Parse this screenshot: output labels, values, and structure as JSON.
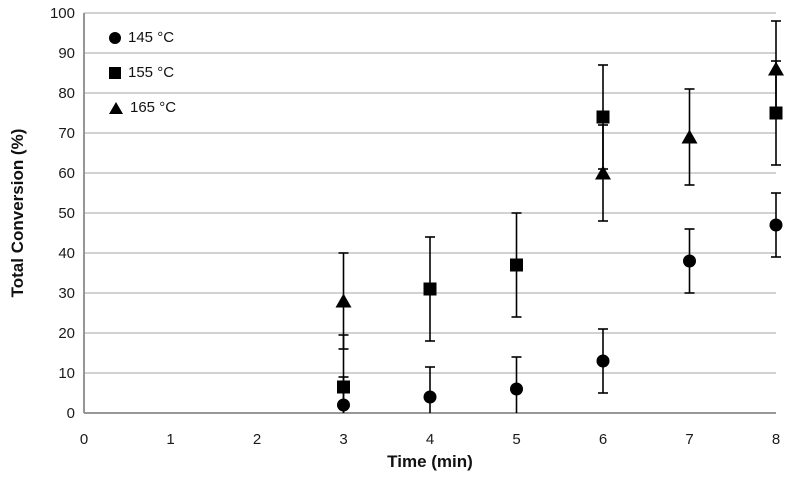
{
  "chart_data": {
    "type": "scatter",
    "title": "",
    "xlabel": "Time (min)",
    "ylabel": "Total Conversion (%)",
    "xlim": [
      0,
      8
    ],
    "ylim": [
      0,
      100
    ],
    "x_tick_step": 1,
    "y_tick_step": 10,
    "grid": "horizontal-only",
    "legend_position": "top-left-inside",
    "x_ticks": [
      0,
      1,
      2,
      3,
      4,
      5,
      6,
      7,
      8
    ],
    "y_ticks": [
      0,
      10,
      20,
      30,
      40,
      50,
      60,
      70,
      80,
      90,
      100
    ],
    "series": [
      {
        "name": "145 °C",
        "marker": "circle",
        "color": "#000000",
        "points": [
          {
            "x": 3,
            "y": 2,
            "err": 7
          },
          {
            "x": 4,
            "y": 4,
            "err": 7.5
          },
          {
            "x": 5,
            "y": 6,
            "err": 8
          },
          {
            "x": 6,
            "y": 13,
            "err": 8
          },
          {
            "x": 7,
            "y": 38,
            "err": 8
          },
          {
            "x": 8,
            "y": 47,
            "err": 8
          }
        ]
      },
      {
        "name": "155 °C",
        "marker": "square",
        "color": "#000000",
        "points": [
          {
            "x": 3,
            "y": 6.5,
            "err": 13
          },
          {
            "x": 4,
            "y": 31,
            "err": 13
          },
          {
            "x": 5,
            "y": 37,
            "err": 13
          },
          {
            "x": 6,
            "y": 74,
            "err": 13
          },
          {
            "x": 8,
            "y": 75,
            "err": 13
          }
        ]
      },
      {
        "name": "165 °C",
        "marker": "triangle",
        "color": "#000000",
        "points": [
          {
            "x": 3,
            "y": 28,
            "err": 12
          },
          {
            "x": 6,
            "y": 60,
            "err": 12
          },
          {
            "x": 7,
            "y": 69,
            "err": 12
          },
          {
            "x": 8,
            "y": 86,
            "err": 12
          }
        ]
      }
    ],
    "colors": {
      "marker": "#000000",
      "error_bar": "#000000",
      "gridline": "#a6a6a6",
      "axis_line": "#8a8a8a",
      "tick_label": "#1a1a1a",
      "background": "#ffffff"
    }
  }
}
